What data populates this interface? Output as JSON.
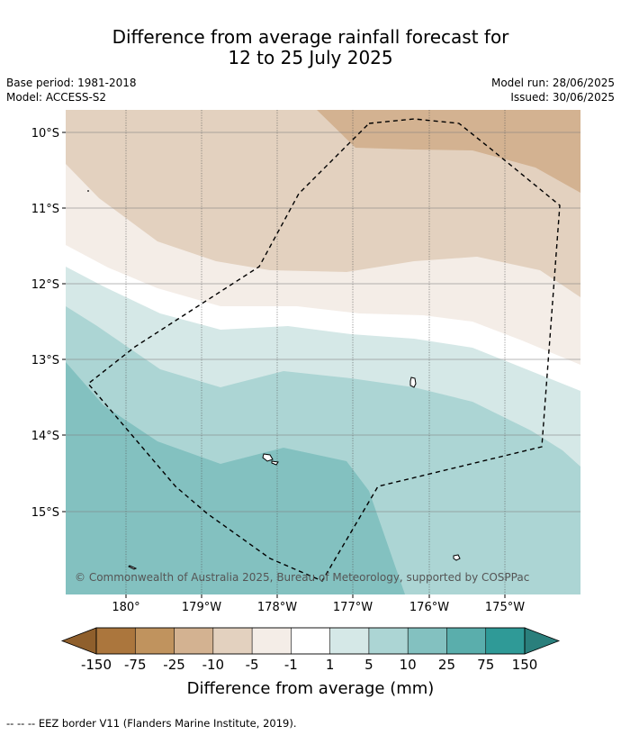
{
  "title": {
    "line1": "Difference from average rainfall forecast for",
    "line2": "12 to 25 July 2025"
  },
  "meta_left": {
    "base_period": "Base period: 1981-2018",
    "model": "Model: ACCESS-S2"
  },
  "meta_right": {
    "model_run": "Model run: 28/06/2025",
    "issued": "Issued: 30/06/2025"
  },
  "map": {
    "lat_labels": [
      "10°S",
      "11°S",
      "12°S",
      "13°S",
      "14°S",
      "15°S"
    ],
    "lon_labels": [
      "180°",
      "179°W",
      "178°W",
      "177°W",
      "176°W",
      "175°W"
    ],
    "copyright": "© Commonwealth of Australia 2025, Bureau of Meteorology, supported by COSPPac"
  },
  "colorbar": {
    "tick_labels": [
      "-150",
      "-75",
      "-25",
      "-10",
      "-5",
      "-1",
      "1",
      "5",
      "10",
      "25",
      "75",
      "150"
    ],
    "colors": [
      "#ab763d",
      "#c0935e",
      "#d3b291",
      "#e3d1bf",
      "#f4ede7",
      "#ffffff",
      "#d5e8e7",
      "#acd5d4",
      "#83c1c0",
      "#5aaeac",
      "#2f9a97",
      "#2a7f7c"
    ],
    "title": "Difference from average (mm)"
  },
  "footnote": "--  --  -- EEZ border V11 (Flanders Marine Institute, 2019)."
}
